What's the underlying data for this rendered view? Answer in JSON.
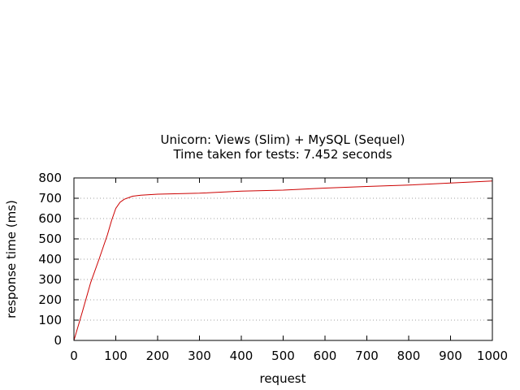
{
  "chart_data": {
    "type": "line",
    "title": "Unicorn: Views (Slim) + MySQL (Sequel)",
    "subtitle": "Time taken for tests: 7.452 seconds",
    "xlabel": "request",
    "ylabel": "response time (ms)",
    "xlim": [
      0,
      1000
    ],
    "ylim": [
      0,
      800
    ],
    "xticks": [
      0,
      100,
      200,
      300,
      400,
      500,
      600,
      700,
      800,
      900,
      1000
    ],
    "yticks": [
      0,
      100,
      200,
      300,
      400,
      500,
      600,
      700,
      800
    ],
    "grid": "horizontal-dotted",
    "series": [
      {
        "color": "#cc0000",
        "x": [
          0,
          20,
          40,
          60,
          80,
          90,
          100,
          110,
          120,
          140,
          160,
          200,
          300,
          400,
          500,
          600,
          700,
          800,
          900,
          1000
        ],
        "y": [
          0,
          140,
          285,
          400,
          520,
          590,
          650,
          680,
          695,
          710,
          715,
          720,
          725,
          735,
          740,
          750,
          758,
          765,
          775,
          785
        ]
      }
    ]
  }
}
